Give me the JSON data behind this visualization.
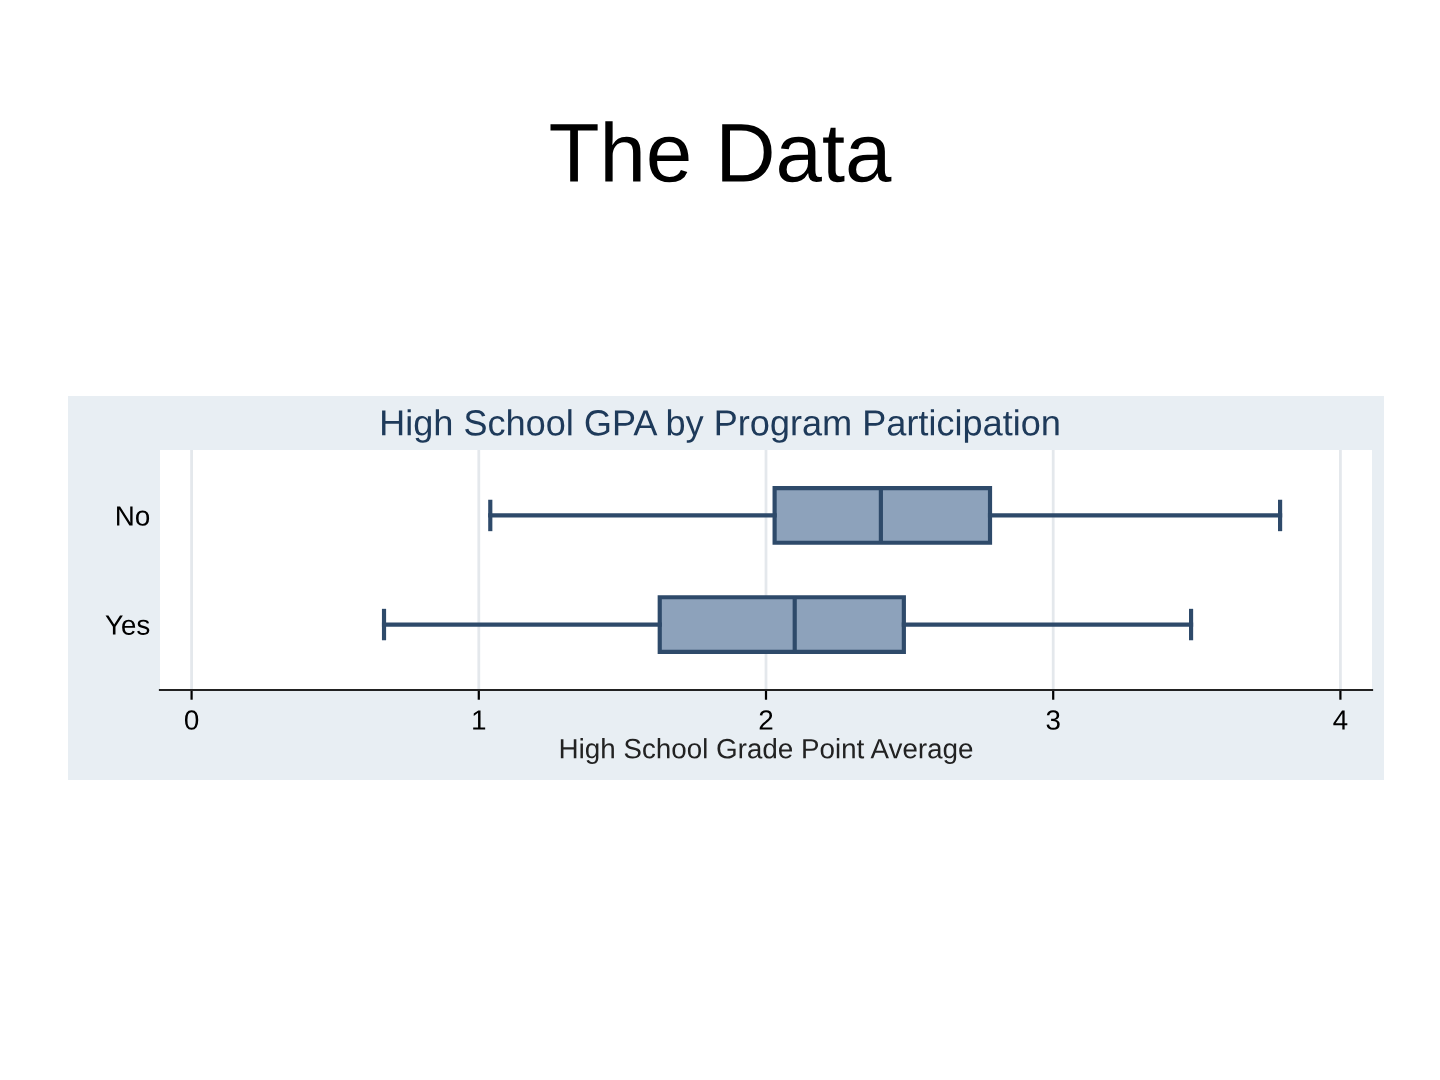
{
  "chart_data": {
    "type": "box",
    "title": "The Data",
    "subtitle": "High School GPA by Program Participation",
    "xlabel": "High School Grade Point Average",
    "orientation": "horizontal",
    "categories": [
      "No",
      "Yes"
    ],
    "boxes": [
      {
        "low": 1.04,
        "q1": 2.03,
        "median": 2.4,
        "q3": 2.78,
        "high": 3.79
      },
      {
        "low": 0.67,
        "q1": 1.63,
        "median": 2.1,
        "q3": 2.48,
        "high": 3.48
      }
    ],
    "color": "#8da2bb",
    "xlim": [
      -0.11,
      4.11
    ],
    "xticks": [
      0,
      1,
      2,
      3,
      4
    ],
    "grid": "x"
  }
}
